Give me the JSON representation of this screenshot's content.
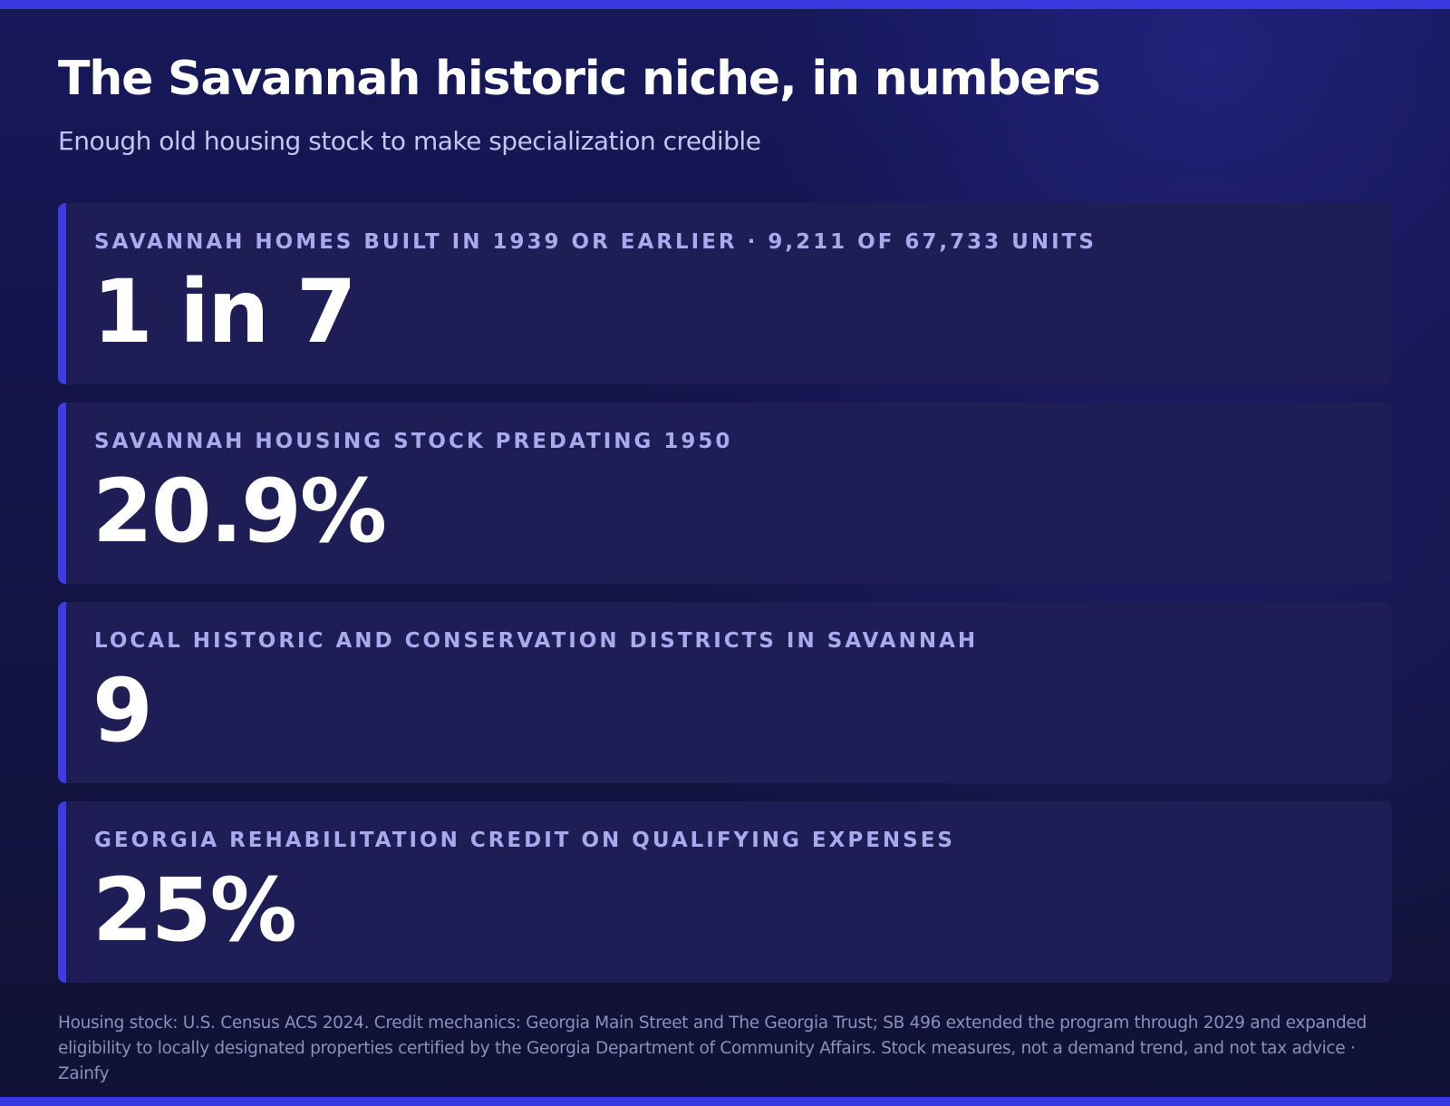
{
  "header": {
    "title": "The Savannah historic niche, in numbers",
    "subtitle": "Enough old housing stock to make specialization credible"
  },
  "stats": [
    {
      "label": "SAVANNAH HOMES BUILT IN 1939 OR EARLIER · 9,211 OF 67,733 UNITS",
      "value": "1 in 7"
    },
    {
      "label": "SAVANNAH HOUSING STOCK PREDATING 1950",
      "value": "20.9%"
    },
    {
      "label": "LOCAL HISTORIC AND CONSERVATION DISTRICTS IN SAVANNAH",
      "value": "9"
    },
    {
      "label": "GEORGIA REHABILITATION CREDIT ON QUALIFYING EXPENSES",
      "value": "25%"
    }
  ],
  "footer": {
    "note": "Housing stock: U.S. Census ACS 2024. Credit mechanics: Georgia Main Street and The Georgia Trust; SB 496 extended the program through 2029 and expanded eligibility to locally designated properties certified by the Georgia Department of Community Affairs. Stock measures, not a demand trend, and not tax advice · Zainfy"
  },
  "colors": {
    "accent": "#3d3ce2",
    "background": "#141449",
    "card": "#1e1d56",
    "label": "#a9aaee"
  }
}
